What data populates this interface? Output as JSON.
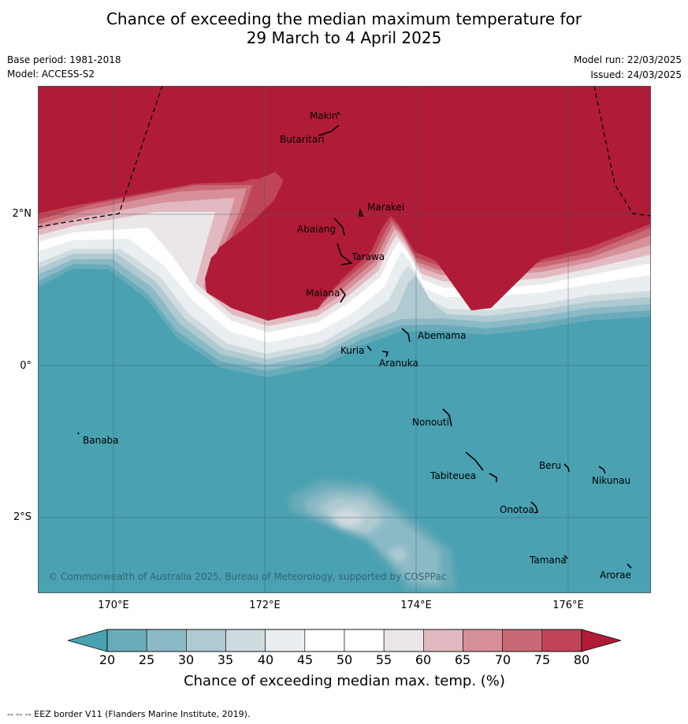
{
  "title": {
    "line1": "Chance of exceeding the median maximum temperature for",
    "line2": "29 March to 4 April 2025"
  },
  "meta": {
    "base_period": "Base period: 1981-2018",
    "model": "Model: ACCESS-S2",
    "model_run": "Model run: 22/03/2025",
    "issued": "Issued: 24/03/2025"
  },
  "axes": {
    "lat_labels": [
      "2°N",
      "0°",
      "2°S"
    ],
    "lon_labels": [
      "170°E",
      "172°E",
      "174°E",
      "176°E"
    ]
  },
  "islands": [
    {
      "name": "Makin"
    },
    {
      "name": "Butaritari"
    },
    {
      "name": "Marakei"
    },
    {
      "name": "Abaiang"
    },
    {
      "name": "Tarawa"
    },
    {
      "name": "Maiana"
    },
    {
      "name": "Abemama"
    },
    {
      "name": "Kuria"
    },
    {
      "name": "Aranuka"
    },
    {
      "name": "Nonouti"
    },
    {
      "name": "Banaba"
    },
    {
      "name": "Beru"
    },
    {
      "name": "Nikunau"
    },
    {
      "name": "Tabiteuea"
    },
    {
      "name": "Onotoa"
    },
    {
      "name": "Tamana"
    },
    {
      "name": "Arorae"
    }
  ],
  "copyright": "© Commonwealth of Australia 2025, Bureau of Meteorology, supported by COSPPac",
  "colorbar": {
    "ticks": [
      "20",
      "25",
      "30",
      "35",
      "40",
      "45",
      "50",
      "55",
      "60",
      "65",
      "70",
      "75",
      "80"
    ],
    "label": "Chance of exceeding median max. temp. (%)",
    "under_color": "#4aa1b1",
    "over_color": "#b01c38",
    "bin_colors": [
      "#6aabba",
      "#8bbac6",
      "#afcad1",
      "#cfdbdf",
      "#e9eef0",
      "#ffffff",
      "#ffffff",
      "#ebe7e8",
      "#e2b9c0",
      "#d78f99",
      "#c86975",
      "#bf4556"
    ]
  },
  "footer": "--  --  -- EEZ border V11 (Flanders Marine Institute, 2019)."
}
